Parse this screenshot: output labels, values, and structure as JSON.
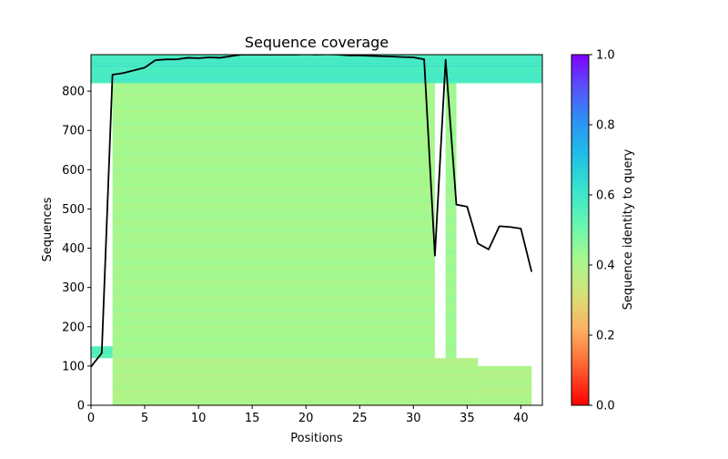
{
  "chart_data": {
    "type": "heatmap",
    "title": "Sequence coverage",
    "xlabel": "Positions",
    "ylabel": "Sequences",
    "xlim": [
      0,
      42
    ],
    "ylim": [
      0,
      893
    ],
    "xticks": [
      0,
      5,
      10,
      15,
      20,
      25,
      30,
      35,
      40
    ],
    "yticks": [
      0,
      100,
      200,
      300,
      400,
      500,
      600,
      700,
      800
    ],
    "colorbar": {
      "label": "Sequence identity to query",
      "range": [
        0.0,
        1.0
      ],
      "ticks": [
        "0.0",
        "0.2",
        "0.4",
        "0.6",
        "0.8",
        "1.0"
      ],
      "colormap": "rainbow_r"
    },
    "coverage_line": {
      "name": "coverage",
      "x": [
        0,
        1,
        2,
        3,
        4,
        5,
        6,
        7,
        8,
        9,
        10,
        11,
        12,
        13,
        14,
        15,
        16,
        17,
        18,
        19,
        20,
        21,
        22,
        23,
        24,
        25,
        26,
        27,
        28,
        29,
        30,
        31,
        32,
        33,
        34,
        35,
        36,
        37,
        38,
        39,
        40,
        41
      ],
      "values": [
        98,
        133,
        842,
        846,
        853,
        860,
        879,
        881,
        881,
        885,
        884,
        886,
        885,
        889,
        893,
        893,
        893,
        893,
        893,
        893,
        894,
        893,
        894,
        893,
        891,
        891,
        890,
        889,
        888,
        887,
        886,
        881,
        381,
        880,
        511,
        506,
        412,
        397,
        456,
        454,
        450,
        340
      ]
    },
    "coverage_blocks": [
      {
        "rows": [
          0,
          120
        ],
        "x": [
          2,
          36
        ],
        "identity": 0.4
      },
      {
        "rows": [
          0,
          100
        ],
        "x": [
          36,
          41
        ],
        "identity": 0.4
      },
      {
        "rows": [
          120,
          820
        ],
        "x": [
          2,
          32
        ],
        "identity": 0.42
      },
      {
        "rows": [
          120,
          820
        ],
        "x": [
          33,
          34
        ],
        "identity": 0.43
      },
      {
        "rows": [
          120,
          150
        ],
        "x": [
          0,
          2
        ],
        "identity": 0.55
      },
      {
        "rows": [
          820,
          893
        ],
        "x": [
          0,
          42
        ],
        "identity": 0.58
      }
    ]
  },
  "colors": {
    "line": "#000000",
    "background": "#ffffff",
    "axis": "#000000"
  }
}
